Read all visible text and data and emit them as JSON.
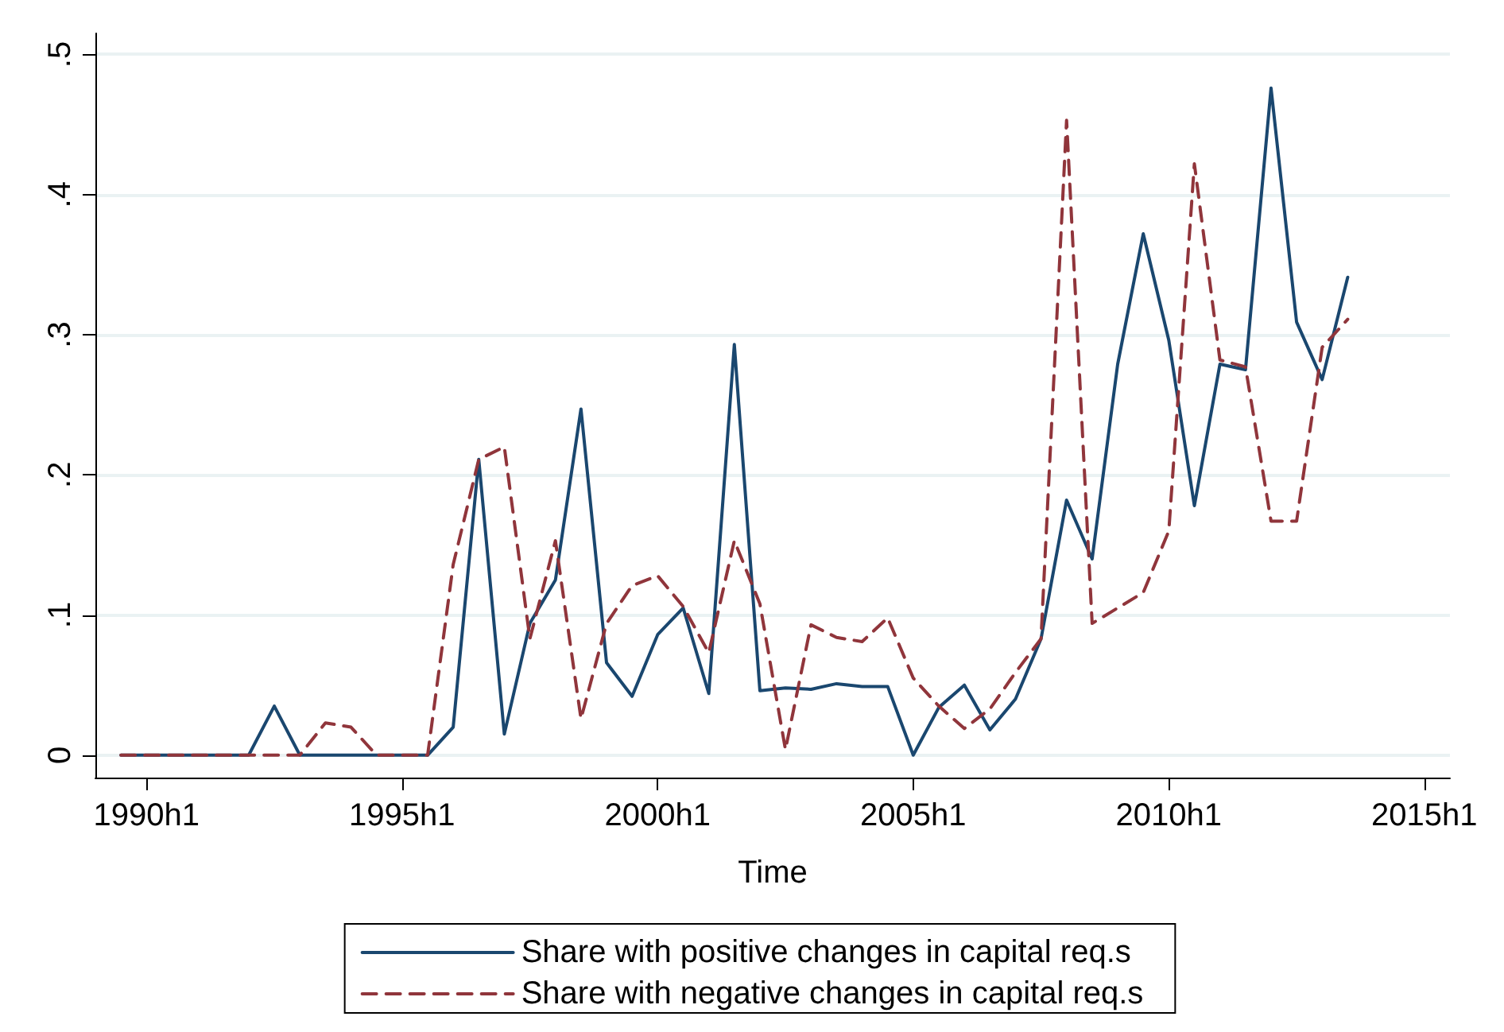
{
  "chart_data": {
    "type": "line",
    "xlabel": "Time",
    "categories": [
      null,
      null,
      "1990h1",
      null,
      null,
      null,
      null,
      null,
      null,
      null,
      null,
      null,
      "1995h1",
      null,
      null,
      null,
      null,
      null,
      null,
      null,
      null,
      null,
      "2000h1",
      null,
      null,
      null,
      null,
      null,
      null,
      null,
      null,
      null,
      "2005h1",
      null,
      null,
      null,
      null,
      null,
      null,
      null,
      null,
      null,
      "2010h1",
      null,
      null,
      null,
      null,
      null,
      null,
      null,
      null,
      null,
      "2015h1",
      null
    ],
    "series": [
      {
        "name": "Share with positive changes in capital req.s",
        "color": "#1a476f",
        "line_style": "solid",
        "values": [
          null,
          0,
          0,
          0,
          0,
          0,
          0,
          0.035,
          0,
          0,
          0,
          0,
          0,
          0,
          0.02,
          0.211,
          0.015,
          0.094,
          0.125,
          0.247,
          0.066,
          0.042,
          0.086,
          0.105,
          0.044,
          0.293,
          0.046,
          0.048,
          0.047,
          0.051,
          0.049,
          0.049,
          0,
          0.034,
          0.05,
          0.018,
          0.04,
          0.083,
          0.182,
          0.14,
          0.279,
          0.372,
          0.296,
          0.178,
          0.279,
          0.275,
          0.476,
          0.309,
          0.268,
          0.341,
          null,
          null,
          null,
          null
        ]
      },
      {
        "name": "Share with negative changes in capital req.s",
        "color": "#90353b",
        "line_style": "dashed",
        "values": [
          null,
          0,
          0,
          0,
          0,
          0,
          0,
          0,
          0,
          0.023,
          0.02,
          0,
          0,
          0,
          0.136,
          0.211,
          0.22,
          0.083,
          0.153,
          0.026,
          0.094,
          0.121,
          0.128,
          0.106,
          0.073,
          0.153,
          0.108,
          0.004,
          0.093,
          0.084,
          0.081,
          0.098,
          0.055,
          0.035,
          0.019,
          0.033,
          0.059,
          0.083,
          0.453,
          0.094,
          0.105,
          0.116,
          0.16,
          0.422,
          0.282,
          0.277,
          0.167,
          0.167,
          0.291,
          0.311,
          null,
          null,
          null,
          null
        ]
      }
    ],
    "ylim": [
      -0.016,
      0.515
    ],
    "yticks": [
      0,
      {
        "value": 0.1,
        "label": ".1"
      },
      {
        "value": 0.2,
        "label": ".2"
      },
      {
        "value": 0.3,
        "label": ".3"
      },
      {
        "value": 0.4,
        "label": ".4"
      },
      {
        "value": 0.5,
        "label": ".5"
      }
    ],
    "grid": "y",
    "legend": "bottom",
    "marker": "none"
  }
}
